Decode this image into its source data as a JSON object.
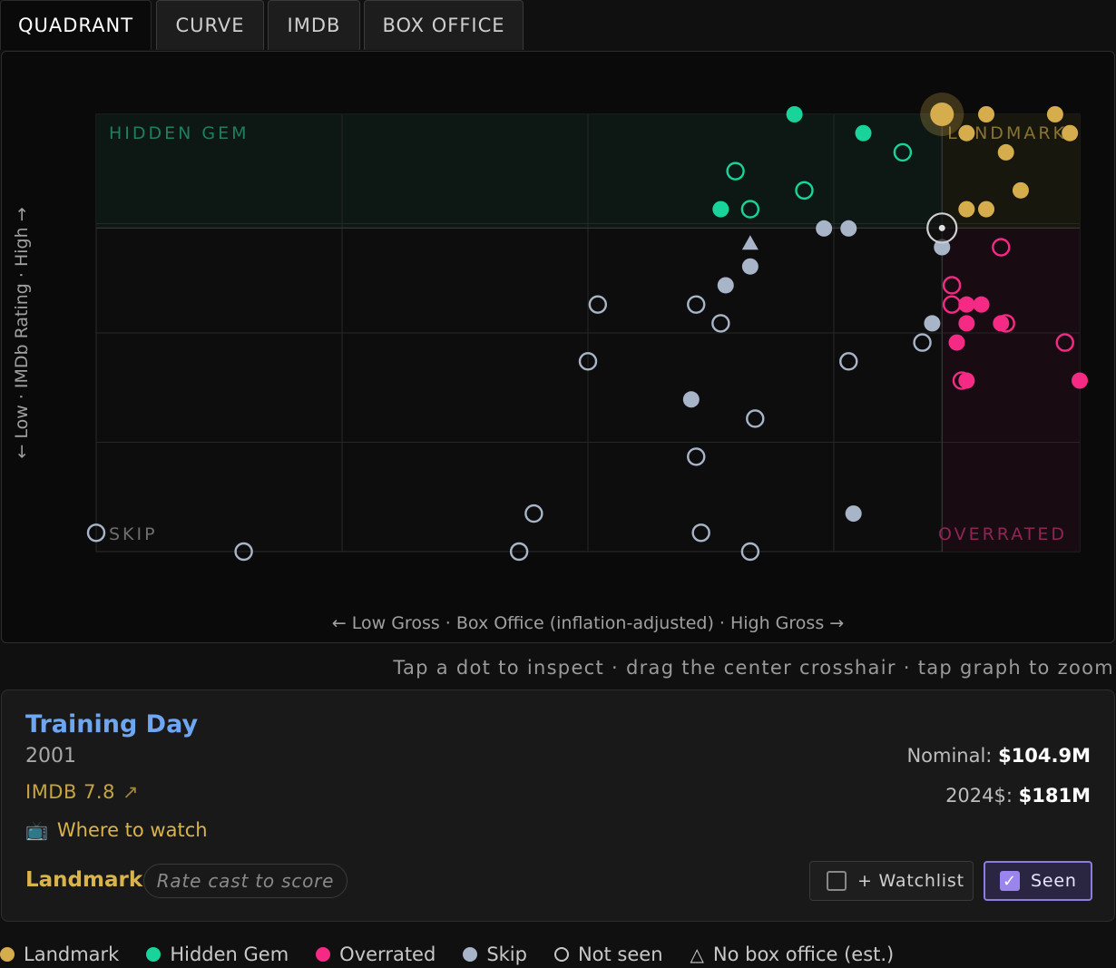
{
  "tabs": [
    {
      "label": "QUADRANT",
      "active": true
    },
    {
      "label": "CURVE",
      "active": false
    },
    {
      "label": "IMDB",
      "active": false
    },
    {
      "label": "BOX OFFICE",
      "active": false
    }
  ],
  "colors": {
    "landmark": "#d6ad4c",
    "hidden_gem": "#19d49a",
    "overrated": "#f52a84",
    "skip": "#a8b4c8",
    "accent": "#9a84ee",
    "title": "#6ea6f2"
  },
  "chart_data": {
    "type": "scatter",
    "quadrant_labels": {
      "top_left": "HIDDEN GEM",
      "top_right": "LANDMARK",
      "bottom_left": "SKIP",
      "bottom_right": "OVERRATED"
    },
    "xlabel": "← Low Gross · Box Office (inflation-adjusted) · High Gross →",
    "ylabel": "← Low · IMDb Rating · High →",
    "xlim": [
      0,
      100
    ],
    "ylim": [
      0,
      100
    ],
    "grid": true,
    "threshold": {
      "x": 86,
      "y": 74
    },
    "selected": {
      "x": 86,
      "y": 74
    },
    "points": [
      {
        "x": 71.0,
        "y": 100.0,
        "cat": "hidden_gem",
        "seen": true
      },
      {
        "x": 78.0,
        "y": 95.7,
        "cat": "hidden_gem",
        "seen": true
      },
      {
        "x": 82.0,
        "y": 91.3,
        "cat": "hidden_gem",
        "seen": false
      },
      {
        "x": 65.0,
        "y": 87.0,
        "cat": "hidden_gem",
        "seen": false
      },
      {
        "x": 72.0,
        "y": 82.6,
        "cat": "hidden_gem",
        "seen": false
      },
      {
        "x": 63.5,
        "y": 78.3,
        "cat": "hidden_gem",
        "seen": true
      },
      {
        "x": 66.5,
        "y": 78.3,
        "cat": "hidden_gem",
        "seen": false
      },
      {
        "x": 86.0,
        "y": 100.0,
        "cat": "landmark",
        "seen": true,
        "big": true
      },
      {
        "x": 90.5,
        "y": 100.0,
        "cat": "landmark",
        "seen": true
      },
      {
        "x": 97.5,
        "y": 100.0,
        "cat": "landmark",
        "seen": true
      },
      {
        "x": 88.5,
        "y": 95.7,
        "cat": "landmark",
        "seen": true
      },
      {
        "x": 99.0,
        "y": 95.7,
        "cat": "landmark",
        "seen": true
      },
      {
        "x": 92.5,
        "y": 91.3,
        "cat": "landmark",
        "seen": true
      },
      {
        "x": 94.0,
        "y": 82.6,
        "cat": "landmark",
        "seen": true
      },
      {
        "x": 88.5,
        "y": 78.3,
        "cat": "landmark",
        "seen": true
      },
      {
        "x": 90.5,
        "y": 78.3,
        "cat": "landmark",
        "seen": true
      },
      {
        "x": 92.0,
        "y": 69.6,
        "cat": "overrated",
        "seen": false
      },
      {
        "x": 87.0,
        "y": 60.9,
        "cat": "overrated",
        "seen": false
      },
      {
        "x": 87.0,
        "y": 56.5,
        "cat": "overrated",
        "seen": false
      },
      {
        "x": 88.5,
        "y": 56.5,
        "cat": "overrated",
        "seen": true
      },
      {
        "x": 90.0,
        "y": 56.5,
        "cat": "overrated",
        "seen": true
      },
      {
        "x": 88.5,
        "y": 52.2,
        "cat": "overrated",
        "seen": true
      },
      {
        "x": 92.0,
        "y": 52.2,
        "cat": "overrated",
        "seen": true
      },
      {
        "x": 92.5,
        "y": 52.2,
        "cat": "overrated",
        "seen": false
      },
      {
        "x": 87.5,
        "y": 47.8,
        "cat": "overrated",
        "seen": true
      },
      {
        "x": 98.5,
        "y": 47.8,
        "cat": "overrated",
        "seen": false
      },
      {
        "x": 88.0,
        "y": 39.1,
        "cat": "overrated",
        "seen": false
      },
      {
        "x": 88.5,
        "y": 39.1,
        "cat": "overrated",
        "seen": true
      },
      {
        "x": 100.0,
        "y": 39.1,
        "cat": "overrated",
        "seen": true
      },
      {
        "x": 74.0,
        "y": 73.9,
        "cat": "skip",
        "seen": true
      },
      {
        "x": 76.5,
        "y": 73.9,
        "cat": "skip",
        "seen": true
      },
      {
        "x": 86.0,
        "y": 69.6,
        "cat": "skip",
        "seen": true
      },
      {
        "x": 66.5,
        "y": 65.2,
        "cat": "skip",
        "seen": true
      },
      {
        "x": 64.0,
        "y": 60.9,
        "cat": "skip",
        "seen": true
      },
      {
        "x": 51.0,
        "y": 56.5,
        "cat": "skip",
        "seen": false
      },
      {
        "x": 61.0,
        "y": 56.5,
        "cat": "skip",
        "seen": false
      },
      {
        "x": 63.5,
        "y": 52.2,
        "cat": "skip",
        "seen": false
      },
      {
        "x": 85.0,
        "y": 52.2,
        "cat": "skip",
        "seen": true
      },
      {
        "x": 84.0,
        "y": 47.8,
        "cat": "skip",
        "seen": false
      },
      {
        "x": 50.0,
        "y": 43.5,
        "cat": "skip",
        "seen": false
      },
      {
        "x": 76.5,
        "y": 43.5,
        "cat": "skip",
        "seen": false
      },
      {
        "x": 60.5,
        "y": 34.8,
        "cat": "skip",
        "seen": true
      },
      {
        "x": 67.0,
        "y": 30.4,
        "cat": "skip",
        "seen": false
      },
      {
        "x": 61.0,
        "y": 21.7,
        "cat": "skip",
        "seen": false
      },
      {
        "x": 44.5,
        "y": 8.7,
        "cat": "skip",
        "seen": false
      },
      {
        "x": 77.0,
        "y": 8.7,
        "cat": "skip",
        "seen": true
      },
      {
        "x": 0.0,
        "y": 4.3,
        "cat": "skip",
        "seen": false
      },
      {
        "x": 61.5,
        "y": 4.3,
        "cat": "skip",
        "seen": false
      },
      {
        "x": 15.0,
        "y": 0.0,
        "cat": "skip",
        "seen": false
      },
      {
        "x": 43.0,
        "y": 0.0,
        "cat": "skip",
        "seen": false
      },
      {
        "x": 66.5,
        "y": 0.0,
        "cat": "skip",
        "seen": false
      },
      {
        "x": 66.5,
        "y": 70.5,
        "cat": "skip",
        "seen": true,
        "no_box_office": true
      }
    ]
  },
  "hint": "Tap a dot to inspect · drag the center crosshair · tap graph to zoom",
  "detail": {
    "title": "Training Day",
    "year": "2001",
    "imdb": "IMDB 7.8",
    "imdb_arrow": "↗",
    "where_to_watch": "Where to watch",
    "tv_icon": "📺",
    "nominal_label": "Nominal:",
    "nominal_value": "$104.9M",
    "adj_label": "2024$:",
    "adj_value": "$181M",
    "classification": "Landmark",
    "rate_placeholder": "Rate cast to score",
    "watchlist_label": "+ Watchlist",
    "seen_label": "Seen",
    "seen_check": "✓",
    "watchlist_checked": false,
    "seen_checked": true
  },
  "legend": [
    {
      "label": "Landmark",
      "type": "dot",
      "color": "#d6ad4c"
    },
    {
      "label": "Hidden Gem",
      "type": "dot",
      "color": "#19d49a"
    },
    {
      "label": "Overrated",
      "type": "dot",
      "color": "#f52a84"
    },
    {
      "label": "Skip",
      "type": "dot",
      "color": "#a8b4c8"
    },
    {
      "label": "Not seen",
      "type": "ring"
    },
    {
      "label": "No box office (est.)",
      "type": "triangle",
      "glyph": "△"
    }
  ]
}
